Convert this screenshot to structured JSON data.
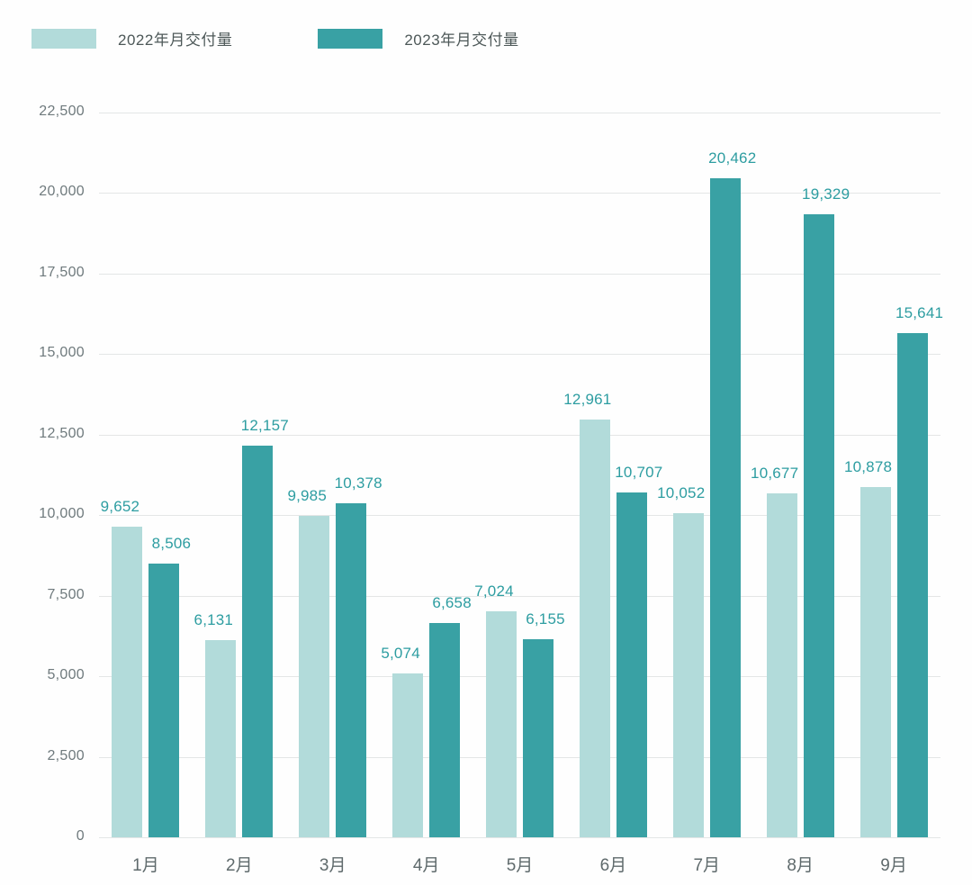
{
  "chart_data": {
    "type": "bar",
    "title": "",
    "xlabel": "",
    "ylabel": "",
    "categories": [
      "1月",
      "2月",
      "3月",
      "4月",
      "5月",
      "6月",
      "7月",
      "8月",
      "9月"
    ],
    "series": [
      {
        "name": "2022年月交付量",
        "color": "#b2dbda",
        "values": [
          9652,
          6131,
          9985,
          5074,
          7024,
          12961,
          10052,
          10677,
          10878
        ],
        "labels": [
          "9,652",
          "6,131",
          "9,985",
          "5,074",
          "7,024",
          "12,961",
          "10,052",
          "10,677",
          "10,878"
        ]
      },
      {
        "name": "2023年月交付量",
        "color": "#39a1a4",
        "values": [
          8506,
          12157,
          10378,
          6658,
          6155,
          10707,
          20462,
          19329,
          15641
        ],
        "labels": [
          "8,506",
          "12,157",
          "10,378",
          "6,658",
          "6,155",
          "10,707",
          "20,462",
          "19,329",
          "15,641"
        ]
      }
    ],
    "ylim": [
      0,
      22500
    ],
    "ytick_step": 2500,
    "yticks": [
      "0",
      "2,500",
      "5,000",
      "7,500",
      "10,000",
      "12,500",
      "15,000",
      "17,500",
      "20,000",
      "22,500"
    ],
    "grid": true,
    "legend_position": "top-left",
    "colors": {
      "value_label": "#2d9da1",
      "ytick_label": "#6f7a7d",
      "xtick_label": "#5f6a6c",
      "gridline": "#e4e6e6",
      "background": "#fefefe"
    }
  }
}
